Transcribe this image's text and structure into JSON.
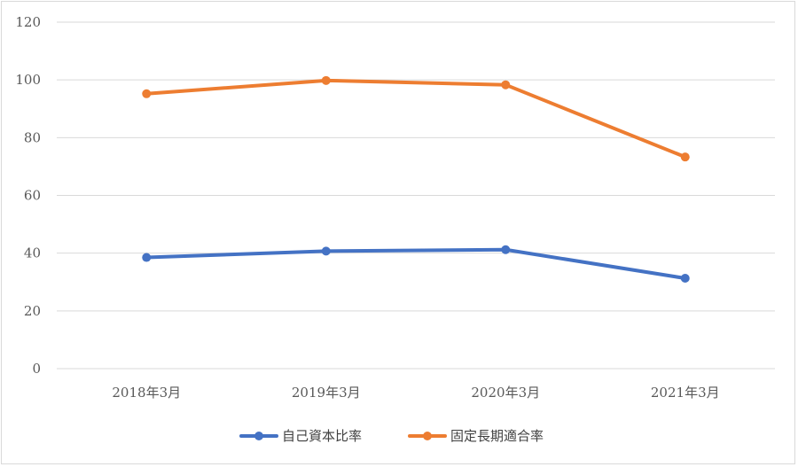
{
  "chart_data": {
    "type": "line",
    "title": "",
    "xlabel": "",
    "ylabel": "",
    "categories": [
      "2018年3月",
      "2019年3月",
      "2020年3月",
      "2021年3月"
    ],
    "ylim": [
      0,
      120
    ],
    "yticks": [
      0,
      20,
      40,
      60,
      80,
      100,
      120
    ],
    "grid": true,
    "legend_position": "bottom",
    "series": [
      {
        "name": "自己資本比率",
        "color": "#4472C4",
        "values": [
          38.5,
          40.7,
          41.2,
          31.3
        ]
      },
      {
        "name": "固定長期適合率",
        "color": "#ED7D31",
        "values": [
          95.2,
          99.8,
          98.3,
          73.3
        ]
      }
    ]
  }
}
